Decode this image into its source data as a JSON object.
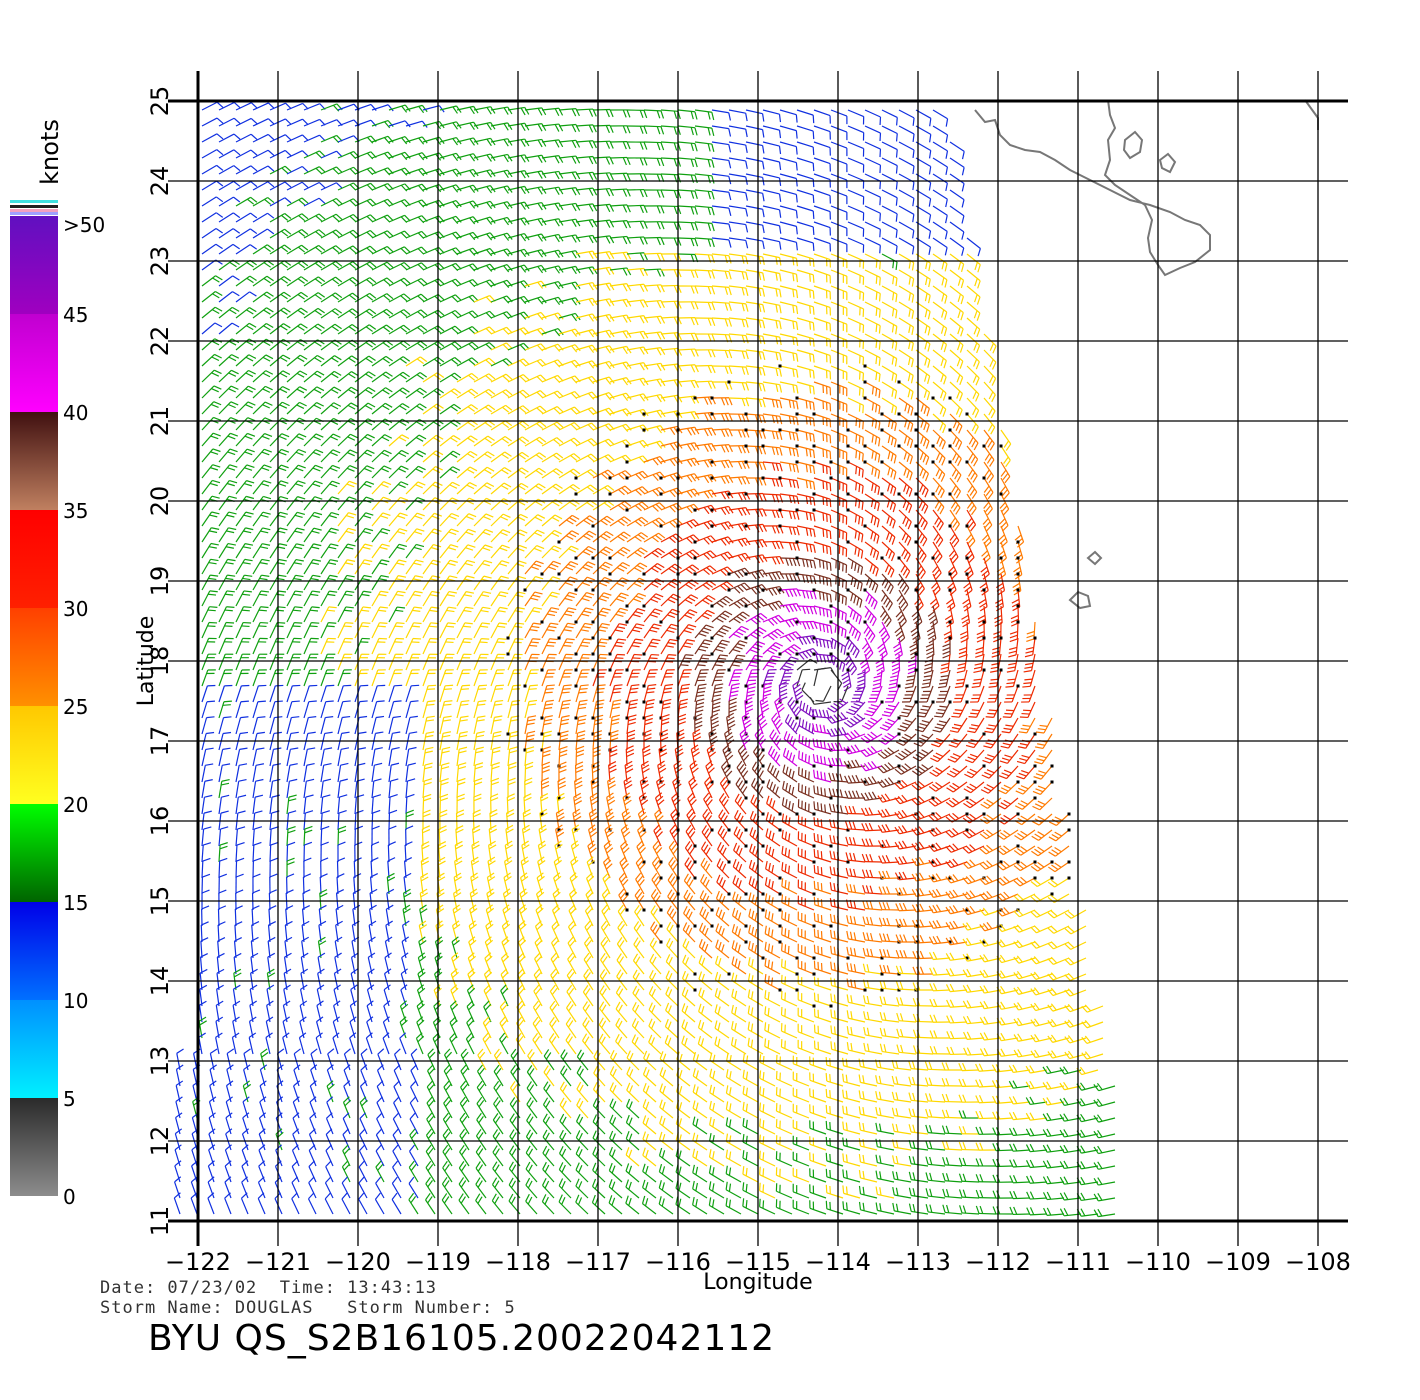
{
  "chart_data": {
    "type": "wind-barb-map",
    "x_axis": {
      "label": "Longitude",
      "range": [
        -122,
        -108
      ],
      "ticks": [
        "−122",
        "−121",
        "−120",
        "−119",
        "−118",
        "−117",
        "−116",
        "−115",
        "−114",
        "−113",
        "−112",
        "−111",
        "−110",
        "−109",
        "−108"
      ]
    },
    "y_axis": {
      "label": "Latitude",
      "range": [
        11,
        25
      ],
      "ticks": [
        "11",
        "12",
        "13",
        "14",
        "15",
        "16",
        "17",
        "18",
        "19",
        "20",
        "21",
        "22",
        "23",
        "24",
        "25"
      ]
    },
    "grid": true,
    "colorbar": {
      "title": "knots",
      "labels": [
        "0",
        "5",
        "10",
        "15",
        "20",
        "25",
        "30",
        "35",
        "40",
        "45",
        ">50"
      ],
      "bands": [
        {
          "from": 0,
          "to": 5,
          "colors": [
            "#8c8c8c",
            "#2a2a2a"
          ]
        },
        {
          "from": 5,
          "to": 10,
          "colors": [
            "#00f0ff",
            "#0090ff"
          ]
        },
        {
          "from": 10,
          "to": 15,
          "colors": [
            "#0070ff",
            "#0000e8"
          ]
        },
        {
          "from": 15,
          "to": 20,
          "colors": [
            "#006400",
            "#00ff00"
          ]
        },
        {
          "from": 20,
          "to": 25,
          "colors": [
            "#ffff20",
            "#ffc800"
          ]
        },
        {
          "from": 25,
          "to": 30,
          "colors": [
            "#ff9000",
            "#ff4000"
          ]
        },
        {
          "from": 30,
          "to": 35,
          "colors": [
            "#ff2000",
            "#ff0000"
          ]
        },
        {
          "from": 35,
          "to": 40,
          "colors": [
            "#c08060",
            "#401010"
          ]
        },
        {
          "from": 40,
          "to": 45,
          "colors": [
            "#ff00ff",
            "#c000d0"
          ]
        },
        {
          "from": 45,
          "to": 50,
          "colors": [
            "#a000c0",
            "#6010c0"
          ]
        }
      ]
    },
    "storm_center": {
      "lon": -114.2,
      "lat": 17.7
    },
    "coastline": "Baja California (top-right)"
  },
  "info": {
    "line1": "Date: 07/23/02  Time: 13:43:13",
    "line2": "Storm Name: DOUGLAS   Storm Number: 5",
    "product": "BYU QS_S2B16105.20022042112"
  }
}
